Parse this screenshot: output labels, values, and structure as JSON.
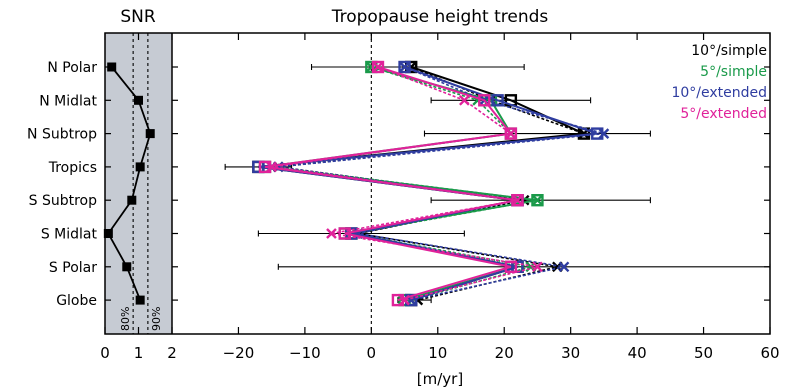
{
  "colors": {
    "panel_bg": "#c6cbd3",
    "black": "#000000",
    "green": "#1a9a4a",
    "blue": "#2f3da0",
    "magenta": "#e0229a"
  },
  "chart_data": [
    {
      "type": "line",
      "title": "SNR",
      "xlabel": "",
      "xlim": [
        0,
        2
      ],
      "xticks": [
        0,
        1,
        2
      ],
      "xtick_labels": [
        "0",
        "1",
        "2"
      ],
      "thresholds": [
        {
          "name": "80%",
          "value": 0.84
        },
        {
          "name": "90%",
          "value": 1.28
        }
      ],
      "categories": [
        "N Polar",
        "N Midlat",
        "N Subtrop",
        "Tropics",
        "S Subtrop",
        "S Midlat",
        "S Polar",
        "Globe"
      ],
      "values": [
        0.2,
        1.0,
        1.35,
        1.05,
        0.8,
        0.1,
        0.65,
        1.05
      ]
    },
    {
      "type": "line",
      "title": "Tropopause height trends",
      "xlabel": "[m/yr]",
      "xlim": [
        -30,
        60
      ],
      "xticks": [
        -20,
        -10,
        0,
        10,
        20,
        30,
        40,
        50,
        60
      ],
      "xtick_labels": [
        "−20",
        "−10",
        "0",
        "10",
        "20",
        "30",
        "40",
        "50",
        "60"
      ],
      "categories": [
        "N Polar",
        "N Midlat",
        "N Subtrop",
        "Tropics",
        "S Subtrop",
        "S Midlat",
        "S Polar",
        "Globe"
      ],
      "error_bars": [
        {
          "lo": -9,
          "hi": 23
        },
        {
          "lo": 9,
          "hi": 33
        },
        {
          "lo": 8,
          "hi": 42
        },
        {
          "lo": -22,
          "hi": -12
        },
        {
          "lo": 9,
          "hi": 42
        },
        {
          "lo": -17,
          "hi": 14
        },
        {
          "lo": -14,
          "hi": 60
        },
        {
          "lo": 4,
          "hi": 9
        }
      ],
      "legend": {
        "position": "top-right"
      },
      "series": [
        {
          "name": "10°/simple",
          "color_key": "black",
          "square": [
            6,
            21,
            32,
            -17,
            22,
            -3,
            22,
            6
          ],
          "cross": [
            6,
            18,
            32,
            -14,
            23,
            -2,
            28,
            7
          ]
        },
        {
          "name": "5°/simple",
          "color_key": "green",
          "square": [
            0,
            18,
            21,
            -16,
            25,
            -4,
            22,
            5
          ],
          "cross": [
            0,
            16,
            21,
            -15,
            25,
            -3,
            24,
            6
          ]
        },
        {
          "name": "10°/extended",
          "color_key": "blue",
          "square": [
            5,
            19,
            34,
            -17,
            22,
            -3,
            22,
            6
          ],
          "cross": [
            5,
            17,
            35,
            -14,
            22,
            -2,
            29,
            6
          ]
        },
        {
          "name": "5°/extended",
          "color_key": "magenta",
          "square": [
            1,
            17,
            21,
            -16,
            22,
            -4,
            21,
            4
          ],
          "cross": [
            1,
            14,
            21,
            -15,
            22,
            -6,
            25,
            5
          ]
        }
      ]
    }
  ]
}
